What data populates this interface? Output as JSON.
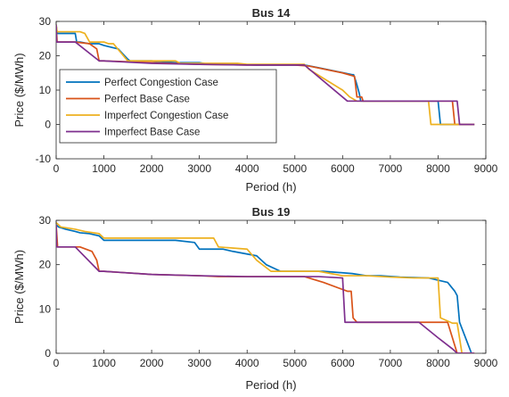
{
  "colors": {
    "perfect_congestion": "#0072BD",
    "perfect_base": "#D95319",
    "imperfect_congestion": "#EDB120",
    "imperfect_base": "#7E2F8E",
    "axis": "#262626"
  },
  "chart_data": [
    {
      "type": "line",
      "title": "Bus 14",
      "xlabel": "Period (h)",
      "ylabel": "Price ($/MWh)",
      "xlim": [
        0,
        9000
      ],
      "ylim": [
        -10,
        30
      ],
      "xticks": [
        "0",
        "1000",
        "2000",
        "3000",
        "4000",
        "5000",
        "6000",
        "7000",
        "8000",
        "9000"
      ],
      "yticks": [
        "-10",
        "0",
        "10",
        "20",
        "30"
      ],
      "grid": false,
      "legend": "middle-left",
      "series": [
        {
          "name": "Perfect Congestion Case",
          "color_key": "perfect_congestion",
          "x": [
            0,
            20,
            60,
            200,
            400,
            430,
            500,
            700,
            900,
            1000,
            1300,
            1500,
            1550,
            2000,
            2500,
            3000,
            3200,
            3800,
            4200,
            5200,
            5500,
            6200,
            6230,
            6280,
            6350,
            6380,
            6450,
            7000,
            7900,
            8000,
            8050,
            8400,
            8760
          ],
          "y": [
            29,
            26.5,
            26.5,
            26.5,
            26.5,
            24,
            24,
            23.5,
            23.5,
            23,
            22,
            19,
            18.5,
            18.5,
            18,
            18,
            17.5,
            17.5,
            17.3,
            17.3,
            16.5,
            14.5,
            14.5,
            12.5,
            9,
            6.8,
            6.8,
            6.8,
            6.8,
            6.8,
            0,
            0,
            0
          ]
        },
        {
          "name": "Perfect Base Case",
          "color_key": "perfect_base",
          "x": [
            0,
            20,
            400,
            700,
            850,
            900,
            1000,
            2000,
            3000,
            4000,
            5000,
            5300,
            6000,
            6250,
            6300,
            6400,
            6430,
            7000,
            8000,
            8300,
            8350,
            8400,
            8760
          ],
          "y": [
            29,
            24,
            24,
            23.5,
            22,
            18.5,
            18.5,
            18,
            17.5,
            17.3,
            17.3,
            17,
            15,
            14,
            8,
            8,
            6.8,
            6.8,
            6.8,
            6.8,
            0,
            0,
            0
          ]
        },
        {
          "name": "Imperfect Congestion Case",
          "color_key": "imperfect_congestion",
          "x": [
            0,
            20,
            300,
            500,
            600,
            700,
            1000,
            1100,
            1200,
            1500,
            1600,
            2500,
            2600,
            3800,
            4000,
            5200,
            5300,
            6000,
            6150,
            6300,
            7000,
            7800,
            7850,
            8200,
            8760
          ],
          "y": [
            29,
            27,
            27,
            27,
            26.5,
            24,
            24,
            23.5,
            23.5,
            18.5,
            18.5,
            18.5,
            17.8,
            17.8,
            17.5,
            17.5,
            16,
            10,
            8,
            6.8,
            6.8,
            6.8,
            0,
            0,
            0
          ]
        },
        {
          "name": "Imperfect Base Case",
          "color_key": "imperfect_base",
          "x": [
            0,
            10,
            400,
            900,
            1000,
            2000,
            3000,
            4000,
            5000,
            5200,
            6100,
            7000,
            8000,
            8400,
            8450,
            8760
          ],
          "y": [
            29,
            24,
            24,
            18.5,
            18.5,
            17.8,
            17.5,
            17.3,
            17.3,
            17.3,
            6.8,
            6.8,
            6.8,
            6.8,
            0,
            0
          ]
        }
      ]
    },
    {
      "type": "line",
      "title": "Bus 19",
      "xlabel": "Period (h)",
      "ylabel": "Price ($/MWh)",
      "xlim": [
        0,
        9000
      ],
      "ylim": [
        0,
        30
      ],
      "xticks": [
        "0",
        "1000",
        "2000",
        "3000",
        "4000",
        "5000",
        "6000",
        "7000",
        "8000",
        "9000"
      ],
      "yticks": [
        "0",
        "10",
        "20",
        "30"
      ],
      "grid": false,
      "series": [
        {
          "name": "Perfect Congestion Case",
          "color_key": "perfect_congestion",
          "x": [
            0,
            50,
            200,
            400,
            500,
            700,
            900,
            1000,
            1500,
            2000,
            2500,
            2900,
            3000,
            3500,
            3700,
            4200,
            4400,
            4700,
            5100,
            5600,
            6200,
            6500,
            6800,
            7200,
            7800,
            8200,
            8350,
            8400,
            8450,
            8700
          ],
          "y": [
            29,
            28.5,
            28,
            27.5,
            27.2,
            27,
            26.5,
            25.5,
            25.5,
            25.5,
            25.5,
            25,
            23.5,
            23.5,
            23,
            22,
            20,
            18.5,
            18.5,
            18.5,
            18,
            17.5,
            17.5,
            17.2,
            17,
            16,
            14,
            13,
            7,
            0
          ]
        },
        {
          "name": "Perfect Base Case",
          "color_key": "perfect_base",
          "x": [
            0,
            30,
            500,
            750,
            850,
            900,
            1000,
            2000,
            3000,
            3400,
            4000,
            5200,
            5600,
            6100,
            6180,
            6220,
            6300,
            7000,
            7500,
            8200,
            8400,
            8760
          ],
          "y": [
            29,
            24,
            24,
            23,
            21,
            18.5,
            18.5,
            17.8,
            17.5,
            17.3,
            17.3,
            17.3,
            16,
            14,
            14,
            8,
            7,
            7,
            7,
            7,
            0,
            0
          ]
        },
        {
          "name": "Imperfect Congestion Case",
          "color_key": "imperfect_congestion",
          "x": [
            0,
            100,
            400,
            600,
            900,
            1000,
            2000,
            3000,
            3300,
            3400,
            4000,
            4200,
            4500,
            4800,
            5500,
            6000,
            6500,
            7000,
            7500,
            7800,
            8000,
            8050,
            8300,
            8400,
            8500,
            8760
          ],
          "y": [
            29.5,
            28.5,
            28,
            27.5,
            27,
            26,
            26,
            26,
            26,
            24,
            23.5,
            21,
            18.5,
            18.5,
            18.5,
            17.5,
            17.5,
            17.2,
            17,
            17,
            17,
            8,
            6.8,
            6.8,
            0,
            0
          ]
        },
        {
          "name": "Imperfect Base Case",
          "color_key": "imperfect_base",
          "x": [
            0,
            10,
            400,
            900,
            1000,
            2000,
            3000,
            4000,
            5000,
            5500,
            6000,
            6050,
            7000,
            7600,
            8000,
            8300,
            8400,
            8760
          ],
          "y": [
            29,
            24,
            24,
            18.5,
            18.5,
            17.8,
            17.5,
            17.3,
            17.3,
            17.3,
            17,
            7,
            7,
            7,
            3.5,
            1,
            0,
            0
          ]
        }
      ]
    }
  ]
}
